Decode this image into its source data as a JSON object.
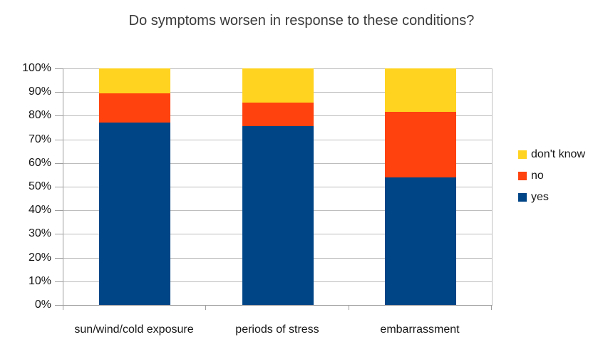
{
  "chart_data": {
    "type": "bar",
    "variant": "stacked-100-percent-column",
    "title": "Do symptoms worsen in response to these conditions?",
    "categories": [
      "sun/wind/cold exposure",
      "periods of stress",
      "embarrassment"
    ],
    "series": [
      {
        "name": "yes",
        "color": "#004586",
        "values": [
          77,
          75.5,
          54
        ]
      },
      {
        "name": "no",
        "color": "#FF420E",
        "values": [
          12.5,
          10,
          27.5
        ]
      },
      {
        "name": "don't know",
        "color": "#FFD320",
        "values": [
          10.5,
          14.5,
          18.5
        ]
      }
    ],
    "value_unit": "%",
    "y_axis": {
      "min": 0,
      "max": 100,
      "tick_step": 10,
      "tick_labels": [
        "100%",
        "90%",
        "80%",
        "70%",
        "60%",
        "50%",
        "40%",
        "30%",
        "20%",
        "10%",
        "0%"
      ]
    },
    "xlabel": "",
    "ylabel": "",
    "grid": true,
    "legend": {
      "position": "right",
      "items_top_to_bottom": [
        "don't know",
        "no",
        "yes"
      ]
    }
  }
}
